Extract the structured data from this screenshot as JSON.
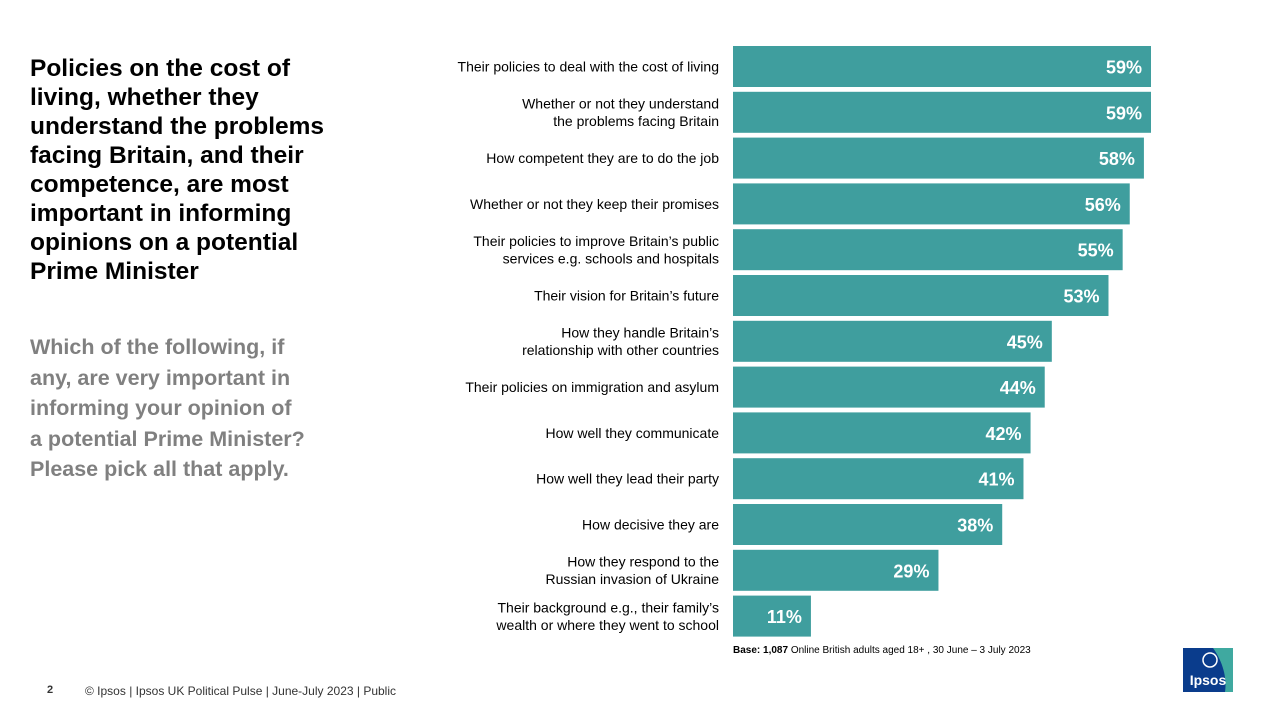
{
  "headline": "Policies on the cost of\nliving, whether they\nunderstand the problems\nfacing Britain, and their\ncompetence, are most\nimportant in informing\nopinions on a potential\nPrime Minister",
  "question": "Which of the following, if\nany, are very important in\ninforming your opinion of\na potential Prime Minister?\nPlease pick all that apply.",
  "colors": {
    "bar": "#3F9E9E",
    "question_text": "#808080"
  },
  "chart_data": {
    "type": "bar",
    "orientation": "horizontal",
    "unit": "%",
    "xlim": [
      0,
      59
    ],
    "categories": [
      [
        "Their policies to deal with the cost of living"
      ],
      [
        "Whether or not they understand",
        "the problems facing Britain"
      ],
      [
        "How competent they are to do the job"
      ],
      [
        "Whether or not they keep their promises"
      ],
      [
        "Their policies to improve Britain’s public",
        "services e.g. schools and hospitals"
      ],
      [
        "Their vision for Britain’s future"
      ],
      [
        "How they handle Britain’s",
        "relationship with other countries"
      ],
      [
        "Their policies on immigration and asylum"
      ],
      [
        "How well they communicate"
      ],
      [
        "How well they lead their party"
      ],
      [
        "How decisive they are"
      ],
      [
        "How they respond to the",
        "Russian invasion of Ukraine"
      ],
      [
        "Their background e.g., their family’s",
        "wealth or where they went to school"
      ]
    ],
    "values": [
      59,
      59,
      58,
      56,
      55,
      53,
      45,
      44,
      42,
      41,
      38,
      29,
      11
    ],
    "value_labels": [
      "59%",
      "59%",
      "58%",
      "56%",
      "55%",
      "53%",
      "45%",
      "44%",
      "42%",
      "41%",
      "38%",
      "29%",
      "11%"
    ]
  },
  "base_note": {
    "bold": "Base: 1,087",
    "text": " Online British adults aged 18+ , 30 June – 3 July 2023"
  },
  "footer": {
    "page_number": "2",
    "text": "© Ipsos  |  Ipsos UK Political Pulse | June-July  2023 | Public"
  },
  "logo": {
    "text": "Ipsos",
    "color": "#0A3C8C",
    "accent": "#3FA9A0"
  }
}
